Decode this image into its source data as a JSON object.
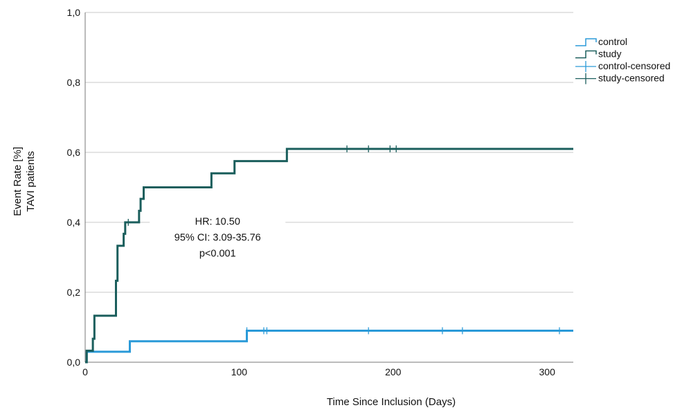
{
  "chart_data": {
    "type": "line",
    "title": "",
    "xlabel": "Time Since Inclusion (Days)",
    "ylabel_lines": [
      "Event Rate [%]",
      "TAVI patients"
    ],
    "xlim": [
      0,
      317
    ],
    "ylim": [
      0,
      1.0
    ],
    "x_ticks": [
      0,
      100,
      200,
      300
    ],
    "x_tick_labels": [
      "0",
      "100",
      "200",
      "300"
    ],
    "y_ticks": [
      0,
      0.2,
      0.4,
      0.6,
      0.8,
      1.0
    ],
    "y_tick_labels": [
      "0,0",
      "0,2",
      "0,4",
      "0,6",
      "0,8",
      "1,0"
    ],
    "grid": "horizontal",
    "legend_position": "top-right",
    "legend": [
      {
        "label": "control",
        "kind": "step",
        "color": "#2a9ad8"
      },
      {
        "label": "study",
        "kind": "step",
        "color": "#1a5e5c"
      },
      {
        "label": "control-censored",
        "kind": "cross",
        "color": "#2a9ad8"
      },
      {
        "label": "study-censored",
        "kind": "cross",
        "color": "#1a5e5c"
      }
    ],
    "annotation": [
      "HR: 10.50",
      "95% CI: 3.09-35.76",
      "p<0.001"
    ],
    "annotation_at": {
      "x": 86,
      "y": 0.375
    },
    "series": [
      {
        "name": "control",
        "color": "#2a9ad8",
        "steps": [
          [
            0,
            0
          ],
          [
            1,
            0.03
          ],
          [
            29,
            0.06
          ],
          [
            105,
            0.09
          ],
          [
            317,
            0.09
          ]
        ],
        "censored": [
          105,
          116,
          118,
          184,
          232,
          245,
          308
        ]
      },
      {
        "name": "study",
        "color": "#1a5e5c",
        "steps": [
          [
            0,
            0
          ],
          [
            1,
            0.033
          ],
          [
            5,
            0.067
          ],
          [
            6,
            0.133
          ],
          [
            20,
            0.233
          ],
          [
            21,
            0.333
          ],
          [
            25,
            0.367
          ],
          [
            26,
            0.4
          ],
          [
            35,
            0.433
          ],
          [
            36,
            0.467
          ],
          [
            38,
            0.5
          ],
          [
            82,
            0.54
          ],
          [
            97,
            0.575
          ],
          [
            131,
            0.61
          ],
          [
            317,
            0.61
          ]
        ],
        "censored": [
          28,
          170,
          184,
          198,
          202
        ]
      }
    ]
  }
}
